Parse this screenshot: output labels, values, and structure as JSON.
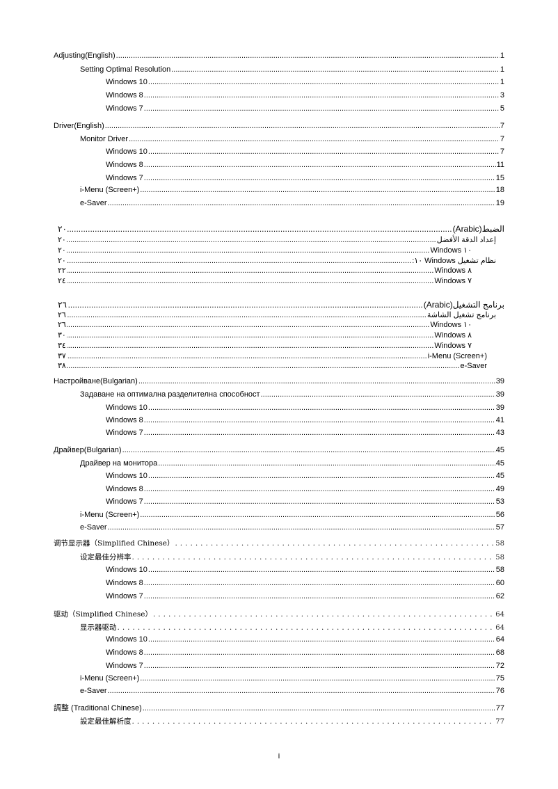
{
  "toc": [
    {
      "text": "Adjusting(English)",
      "page": "1",
      "level": 0
    },
    {
      "text": "Setting Optimal Resolution",
      "page": "1",
      "level": 1
    },
    {
      "text": "Windows 10",
      "page": "1",
      "level": 2
    },
    {
      "text": "Windows 8",
      "page": "3",
      "level": 2
    },
    {
      "text": "Windows 7",
      "page": "5",
      "level": 2
    },
    {
      "text": "Driver(English)",
      "page": "7",
      "level": 0
    },
    {
      "text": "Monitor Driver",
      "page": "7",
      "level": 1
    },
    {
      "text": "Windows 10",
      "page": "7",
      "level": 2
    },
    {
      "text": "Windows 8",
      "page": "11",
      "level": 2
    },
    {
      "text": "Windows 7",
      "page": "15",
      "level": 2
    },
    {
      "text": "i-Menu (Screen+)",
      "page": "18",
      "level": 1
    },
    {
      "text": "e-Saver",
      "page": "19",
      "level": 1
    },
    {
      "text": "(Arabic)الضبط",
      "page": "٢٠",
      "level": 0,
      "rtl": true
    },
    {
      "text": "إعداد الدقة الأفضل",
      "page": "٢٠",
      "level": 1,
      "rtl": true
    },
    {
      "text": "Windows ١٠",
      "page": "٢٠",
      "level": 2,
      "rtl": true
    },
    {
      "text": "نظام تشغيل Windows ١٠:",
      "page": "٢٠",
      "level": 1,
      "rtl": true
    },
    {
      "text": "Windows ٨",
      "page": "٢٢",
      "level": 2,
      "rtl": true
    },
    {
      "text": "Windows ٧",
      "page": "٢٤",
      "level": 2,
      "rtl": true
    },
    {
      "text": "(Arabic)برنامج التشغيل",
      "page": "٢٦",
      "level": 0,
      "rtl": true
    },
    {
      "text": "برنامج تشغيل الشاشة",
      "page": "٢٦",
      "level": 1,
      "rtl": true
    },
    {
      "text": "Windows ١٠",
      "page": "٢٦",
      "level": 2,
      "rtl": true
    },
    {
      "text": "Windows ٨",
      "page": "٣٠",
      "level": 2,
      "rtl": true
    },
    {
      "text": "Windows ٧",
      "page": "٣٤",
      "level": 2,
      "rtl": true
    },
    {
      "text": "i-Menu (Screen+)",
      "page": "٣٧",
      "level": 3,
      "rtl": true
    },
    {
      "text": "e-Saver",
      "page": "٣٨",
      "level": 4,
      "rtl": true
    },
    {
      "text": "Настройване(Bulgarian)",
      "page": "39",
      "level": 0
    },
    {
      "text": "Задаване на оптимална разделителна способност",
      "page": "39",
      "level": 1
    },
    {
      "text": "Windows 10",
      "page": "39",
      "level": 2
    },
    {
      "text": "Windows 8",
      "page": "41",
      "level": 2
    },
    {
      "text": "Windows 7",
      "page": "43",
      "level": 2
    },
    {
      "text": "Драйвер(Bulgarian)",
      "page": "45",
      "level": 0
    },
    {
      "text": "Драйвер на монитора",
      "page": "45",
      "level": 1
    },
    {
      "text": "Windows 10",
      "page": "45",
      "level": 2
    },
    {
      "text": "Windows 8",
      "page": "49",
      "level": 2
    },
    {
      "text": "Windows 7",
      "page": "53",
      "level": 2
    },
    {
      "text": "i-Menu (Screen+)",
      "page": "56",
      "level": 1
    },
    {
      "text": "e-Saver",
      "page": "57",
      "level": 1
    },
    {
      "text": "调节显示器（Simplified Chinese）",
      "page": "58",
      "level": 0,
      "serif": true
    },
    {
      "text": "设定最佳分辨率",
      "page": "58",
      "level": 1,
      "serif": true
    },
    {
      "text": "Windows 10",
      "page": "58",
      "level": 2
    },
    {
      "text": "Windows 8",
      "page": "60",
      "level": 2
    },
    {
      "text": "Windows 7",
      "page": "62",
      "level": 2
    },
    {
      "text": "驱动（Simplified Chinese）",
      "page": "64",
      "level": 0,
      "serif": true
    },
    {
      "text": "显示器驱动",
      "page": "64",
      "level": 1,
      "serif": true
    },
    {
      "text": "Windows 10",
      "page": "64",
      "level": 2
    },
    {
      "text": "Windows 8",
      "page": "68",
      "level": 2
    },
    {
      "text": "Windows 7",
      "page": "72",
      "level": 2
    },
    {
      "text": "i-Menu (Screen+)",
      "page": "75",
      "level": 1
    },
    {
      "text": "e-Saver",
      "page": "76",
      "level": 1
    },
    {
      "text": "調整 (Traditional Chinese)",
      "page": "77",
      "level": 0
    },
    {
      "text": "設定最佳解析度",
      "page": "77",
      "level": 1,
      "serif": true
    }
  ],
  "footer": {
    "page_number": "i"
  }
}
